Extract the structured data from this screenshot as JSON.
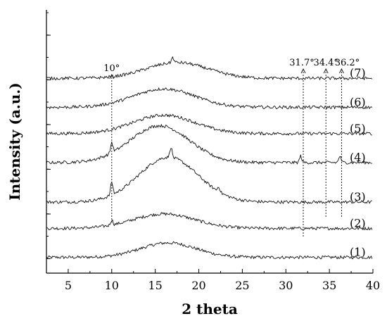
{
  "chart_data": {
    "type": "line",
    "xlabel": "2 theta",
    "ylabel": "Intensity (a.u.)",
    "xlim": [
      2.5,
      40
    ],
    "x_ticks": [
      "5",
      "10",
      "15",
      "20",
      "25",
      "30",
      "35",
      "40"
    ],
    "x_tick_values": [
      5,
      10,
      15,
      20,
      25,
      30,
      35,
      40
    ],
    "y_tick_labels_shown": false,
    "series": [
      {
        "name": "(1)",
        "baseline": 0.06,
        "hump_center": 16.5,
        "hump_height": 0.055,
        "hump_width": 4.5,
        "peaks": []
      },
      {
        "name": "(2)",
        "baseline": 0.17,
        "hump_center": 16.0,
        "hump_height": 0.055,
        "hump_width": 5.0,
        "peaks": [
          [
            10.0,
            0.02
          ]
        ]
      },
      {
        "name": "(3)",
        "baseline": 0.27,
        "hump_center": 16.5,
        "hump_height": 0.17,
        "hump_width": 4.8,
        "peaks": [
          [
            10.0,
            0.05
          ],
          [
            16.8,
            0.04
          ],
          [
            22.3,
            0.02
          ]
        ]
      },
      {
        "name": "(4)",
        "baseline": 0.42,
        "hump_center": 15.5,
        "hump_height": 0.14,
        "hump_width": 4.8,
        "peaks": [
          [
            10.0,
            0.04
          ],
          [
            31.7,
            0.025
          ],
          [
            36.2,
            0.025
          ]
        ]
      },
      {
        "name": "(5)",
        "baseline": 0.53,
        "hump_center": 16.0,
        "hump_height": 0.07,
        "hump_width": 5.0,
        "peaks": []
      },
      {
        "name": "(6)",
        "baseline": 0.63,
        "hump_center": 16.0,
        "hump_height": 0.07,
        "hump_width": 5.0,
        "peaks": []
      },
      {
        "name": "(7)",
        "baseline": 0.74,
        "hump_center": 17.5,
        "hump_height": 0.06,
        "hump_width": 5.0,
        "peaks": [
          [
            17.0,
            0.02
          ]
        ]
      }
    ],
    "annotations": [
      {
        "label": "10°",
        "x": 10.0
      },
      {
        "label": "31.7°",
        "x": 32.0
      },
      {
        "label": "34.4°",
        "x": 34.6
      },
      {
        "label": "36.2°",
        "x": 36.4
      }
    ]
  }
}
